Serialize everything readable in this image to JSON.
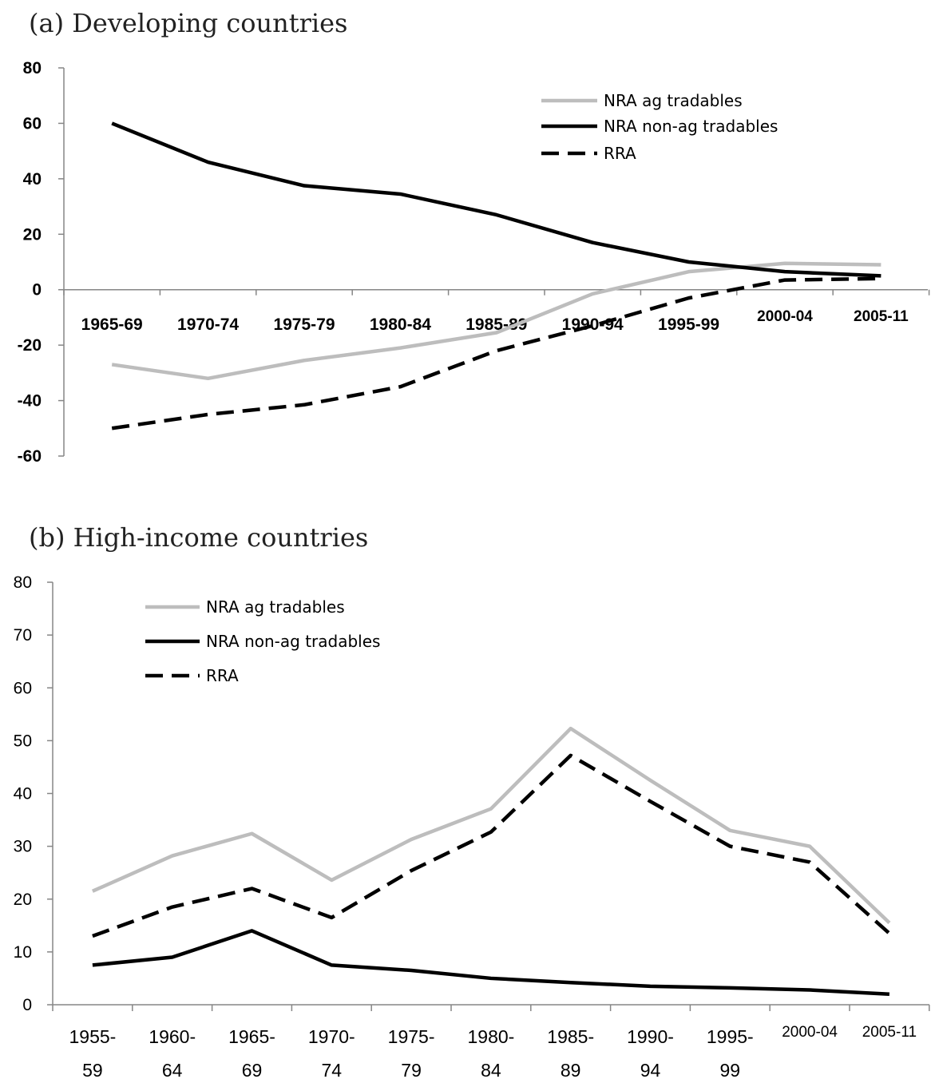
{
  "chart_data": [
    {
      "type": "line",
      "title": "(a) Developing countries",
      "xlabel": "",
      "ylabel": "",
      "categories": [
        "1965-69",
        "1970-74",
        "1975-79",
        "1980-84",
        "1985-89",
        "1990-94",
        "1995-99",
        "2000-04",
        "2005-11"
      ],
      "ylim": [
        -60,
        80
      ],
      "yticks": [
        80,
        60,
        40,
        20,
        0,
        -20,
        -40,
        -60
      ],
      "grid": false,
      "legend_position": "top-right",
      "series": [
        {
          "name": "NRA ag tradables",
          "style": "solid",
          "color": "#bdbdbd",
          "values": [
            -27,
            -32,
            -25.5,
            -21,
            -15.5,
            -1.5,
            6.5,
            9.5,
            9
          ]
        },
        {
          "name": "NRA non-ag tradables",
          "style": "solid",
          "color": "#000000",
          "values": [
            60,
            46,
            37.5,
            34.5,
            27,
            17,
            10,
            6.5,
            5
          ]
        },
        {
          "name": "RRA",
          "style": "dashed",
          "color": "#000000",
          "values": [
            -50,
            -45,
            -41.5,
            -35,
            -22,
            -13,
            -3,
            3.5,
            4
          ]
        }
      ]
    },
    {
      "type": "line",
      "title": "(b) High-income countries",
      "xlabel": "",
      "ylabel": "",
      "categories": [
        "1955-59",
        "1960-64",
        "1965-69",
        "1970-74",
        "1975-79",
        "1980-84",
        "1985-89",
        "1990-94",
        "1995-99",
        "2000-04",
        "2005-11"
      ],
      "ylim": [
        0,
        80
      ],
      "yticks": [
        80,
        70,
        60,
        50,
        40,
        30,
        20,
        10,
        0
      ],
      "grid": false,
      "legend_position": "top-left",
      "series": [
        {
          "name": "NRA ag tradables",
          "style": "solid",
          "color": "#bdbdbd",
          "values": [
            21.5,
            28.2,
            32.4,
            23.6,
            31.3,
            37.1,
            52.3,
            42.5,
            33,
            30,
            15.5
          ]
        },
        {
          "name": "NRA non-ag tradables",
          "style": "solid",
          "color": "#000000",
          "values": [
            7.5,
            9,
            14,
            7.5,
            6.5,
            5,
            4.2,
            3.5,
            3.2,
            2.8,
            2
          ]
        },
        {
          "name": "RRA",
          "style": "dashed",
          "color": "#000000",
          "values": [
            13,
            18.5,
            22,
            16.5,
            25.4,
            32.7,
            47.2,
            38.5,
            30,
            27,
            13.5
          ]
        }
      ]
    }
  ]
}
